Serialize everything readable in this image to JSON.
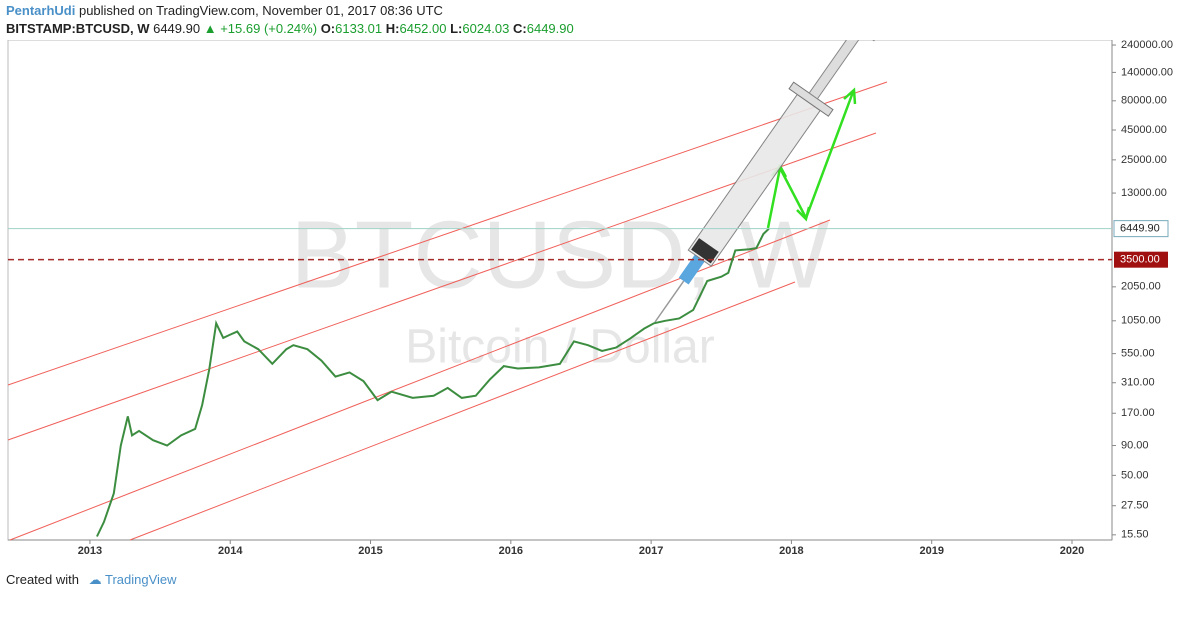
{
  "header": {
    "author": "PentarhUdi",
    "published": "published on TradingView.com, November 01, 2017 08:36 UTC",
    "symbol": "BITSTAMP:BTCUSD, W",
    "price": "6449.90",
    "change": "+15.69 (+0.24%)",
    "o_label": "O:",
    "o": "6133.01",
    "h_label": "H:",
    "h": "6452.00",
    "l_label": "L:",
    "l": "6024.03",
    "c_label": "C:",
    "c": "6449.90"
  },
  "watermark": {
    "symbol": "BTCUSD, W",
    "name": "Bitcoin / Dollar"
  },
  "footer": {
    "created": "Created with",
    "brand": "TradingView"
  },
  "chart_data": {
    "type": "line",
    "log_y": true,
    "grid": false,
    "color": "#3c8d40",
    "x": [
      2013.05,
      2013.1,
      2013.17,
      2013.22,
      2013.27,
      2013.3,
      2013.35,
      2013.45,
      2013.55,
      2013.65,
      2013.75,
      2013.8,
      2013.85,
      2013.9,
      2013.95,
      2014.0,
      2014.05,
      2014.1,
      2014.2,
      2014.3,
      2014.4,
      2014.45,
      2014.55,
      2014.65,
      2014.75,
      2014.85,
      2014.95,
      2015.05,
      2015.15,
      2015.3,
      2015.45,
      2015.55,
      2015.65,
      2015.75,
      2015.85,
      2015.95,
      2016.05,
      2016.2,
      2016.35,
      2016.45,
      2016.55,
      2016.65,
      2016.75,
      2016.85,
      2016.95,
      2017.02,
      2017.1,
      2017.2,
      2017.3,
      2017.4,
      2017.5,
      2017.55,
      2017.6,
      2017.7,
      2017.75,
      2017.8,
      2017.84
    ],
    "values": [
      15,
      20,
      35,
      90,
      160,
      110,
      120,
      100,
      90,
      110,
      125,
      200,
      400,
      1000,
      750,
      800,
      850,
      700,
      600,
      450,
      600,
      650,
      600,
      480,
      350,
      380,
      320,
      220,
      260,
      230,
      240,
      280,
      230,
      240,
      330,
      430,
      410,
      420,
      450,
      700,
      650,
      580,
      620,
      740,
      900,
      1000,
      1050,
      1100,
      1300,
      2300,
      2500,
      2700,
      4200,
      4300,
      4400,
      5800,
      6449.9
    ],
    "xlim": [
      2012.416,
      2020.285
    ],
    "xticks": [
      2013,
      2014,
      2015,
      2016,
      2017,
      2018,
      2019,
      2020
    ],
    "ylim": [
      14,
      265000
    ],
    "yticks": [
      {
        "value": 240000,
        "label": "240000.00"
      },
      {
        "value": 140000,
        "label": "140000.00"
      },
      {
        "value": 80000,
        "label": "80000.00"
      },
      {
        "value": 45000,
        "label": "45000.00"
      },
      {
        "value": 25000,
        "label": "25000.00"
      },
      {
        "value": 13000,
        "label": "13000.00"
      },
      {
        "value": 2050,
        "label": "2050.00"
      },
      {
        "value": 1050,
        "label": "1050.00"
      },
      {
        "value": 550,
        "label": "550.00"
      },
      {
        "value": 310,
        "label": "310.00"
      },
      {
        "value": 170,
        "label": "170.00"
      },
      {
        "value": 90,
        "label": "90.00"
      },
      {
        "value": 50,
        "label": "50.00"
      },
      {
        "value": 27.5,
        "label": "27.50"
      },
      {
        "value": 15.5,
        "label": "15.50"
      }
    ],
    "last_price": {
      "value": 6449.9,
      "label": "6449.90"
    },
    "hline": {
      "value": 3500,
      "label": "3500.00"
    }
  }
}
